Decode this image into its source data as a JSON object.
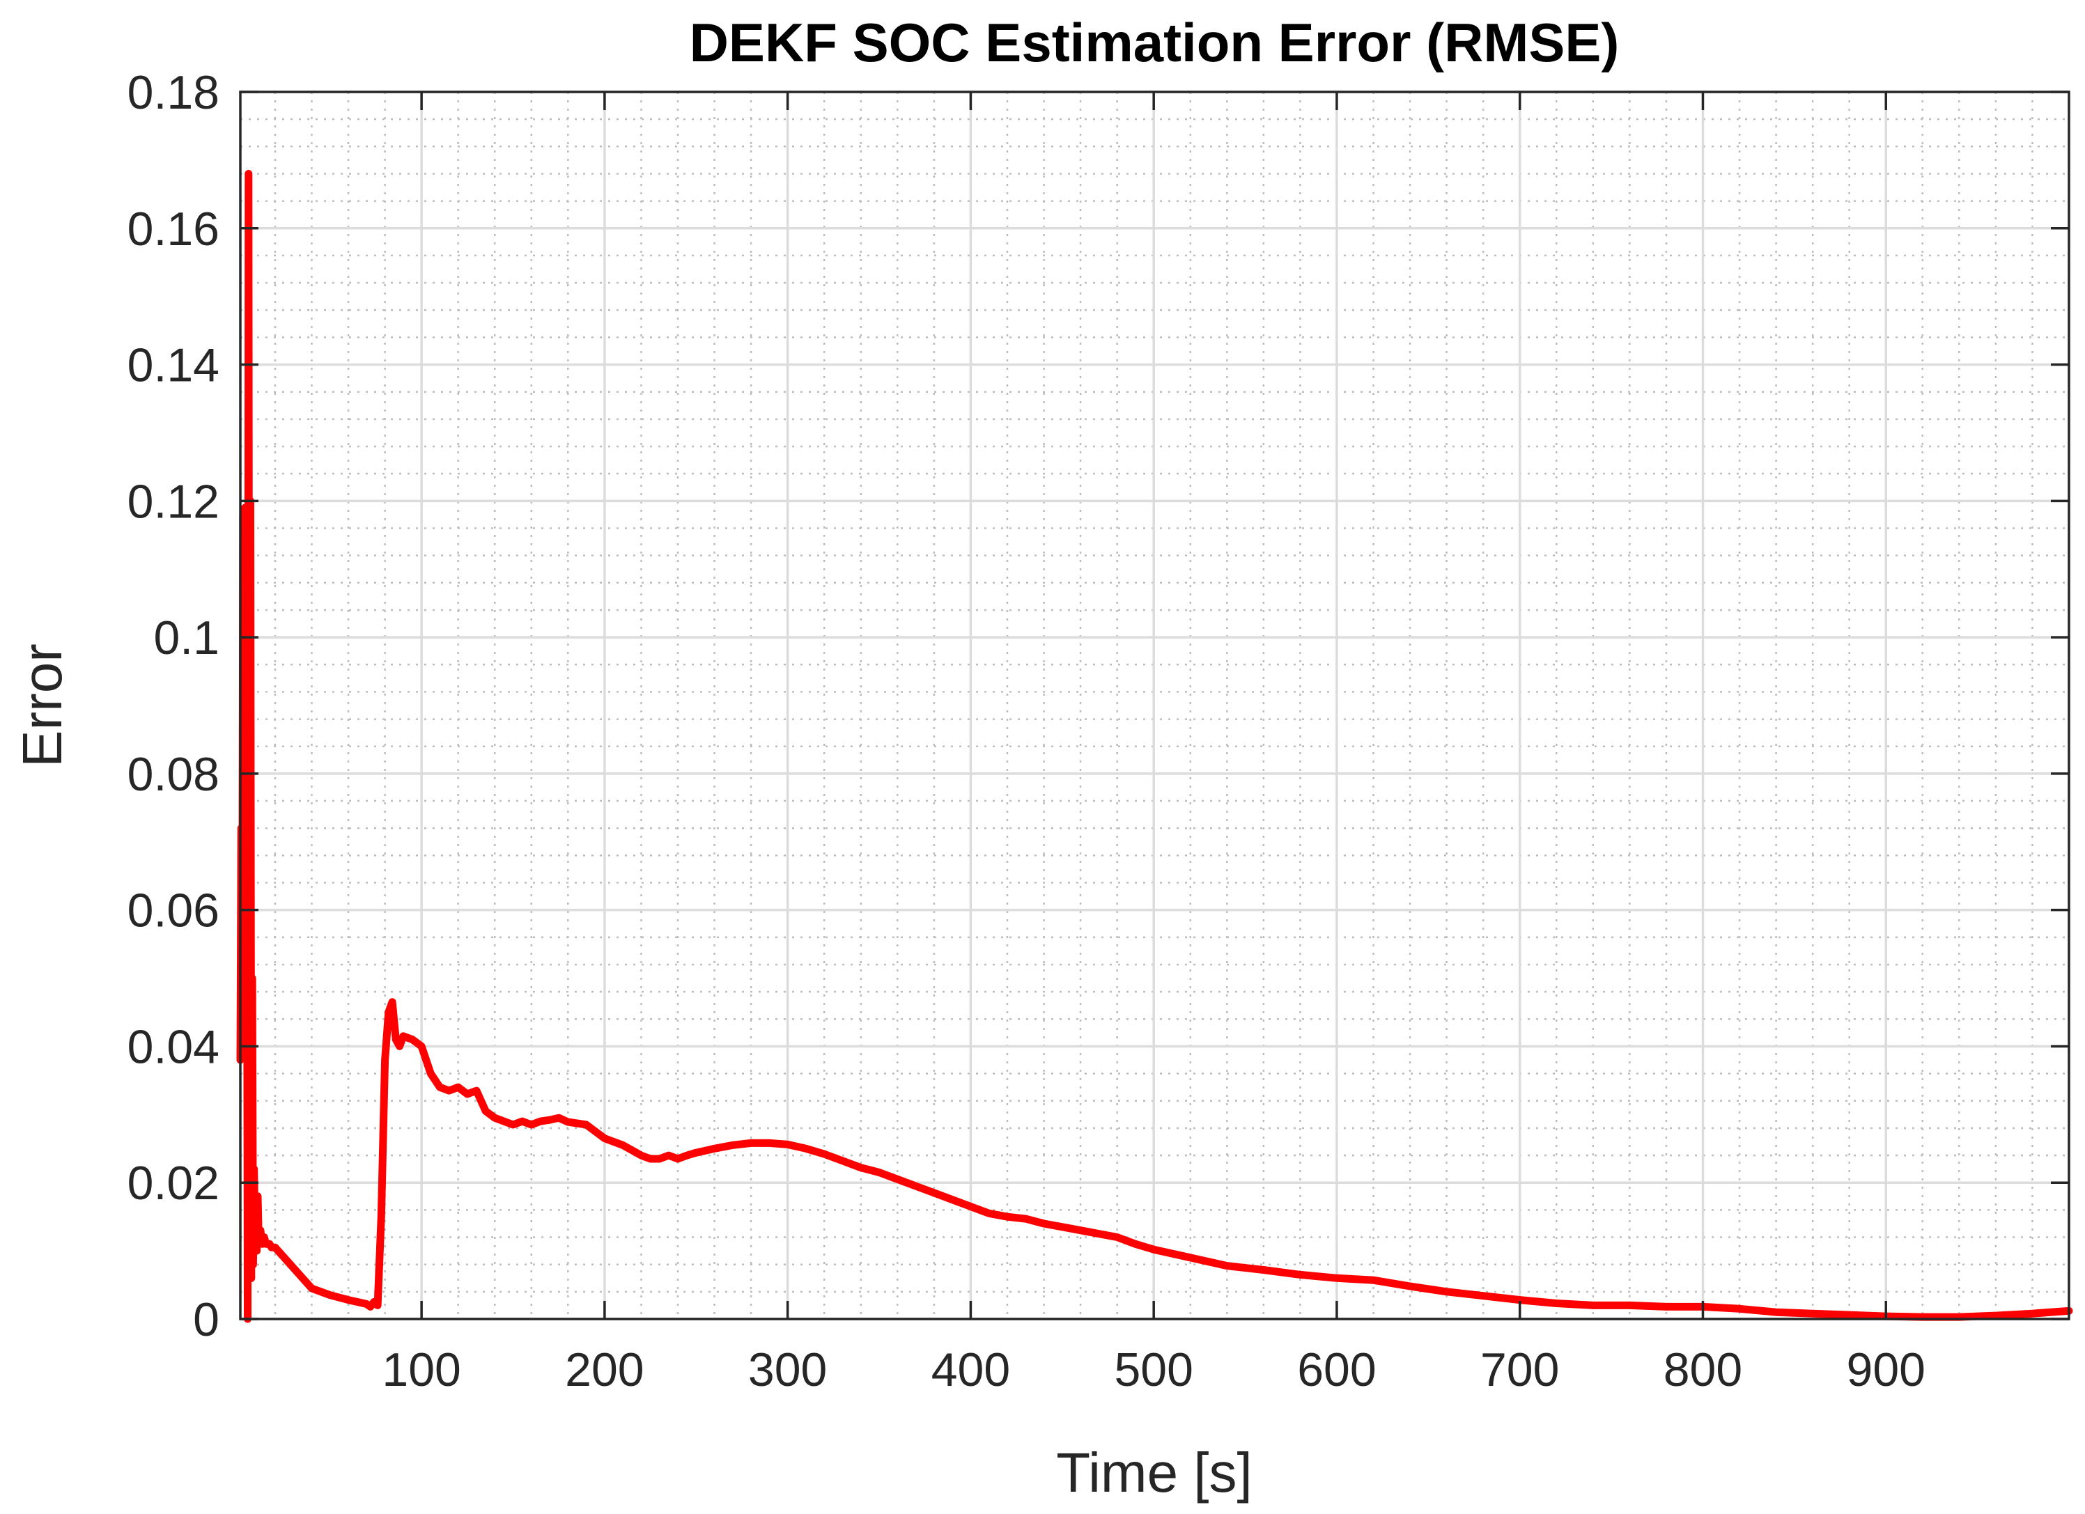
{
  "chart_data": {
    "type": "line",
    "title": "DEKF SOC Estimation Error (RMSE)",
    "xlabel": "Time [s]",
    "ylabel": "Error",
    "xlim": [
      1,
      1000
    ],
    "ylim": [
      0,
      0.18
    ],
    "x_ticks": [
      100,
      200,
      300,
      400,
      500,
      600,
      700,
      800,
      900
    ],
    "x_tick_labels": [
      "100",
      "200",
      "300",
      "400",
      "500",
      "600",
      "700",
      "800",
      "900"
    ],
    "y_ticks": [
      0,
      0.02,
      0.04,
      0.06,
      0.08,
      0.1,
      0.12,
      0.14,
      0.16,
      0.18
    ],
    "y_tick_labels": [
      "0",
      "0.02",
      "0.04",
      "0.06",
      "0.08",
      "0.1",
      "0.12",
      "0.14",
      "0.16",
      "0.18"
    ],
    "grid": true,
    "minor_grid": true,
    "series": [
      {
        "name": "RMSE",
        "color": "#ff0000",
        "x": [
          1,
          1.5,
          2,
          2.5,
          3,
          3.5,
          4,
          4.5,
          5,
          5.5,
          6,
          6.5,
          7,
          7.5,
          8,
          8.5,
          9,
          9.5,
          10,
          10.5,
          11,
          12,
          13,
          14,
          15,
          16,
          17,
          18,
          20,
          25,
          30,
          40,
          50,
          60,
          65,
          70,
          72,
          74,
          76,
          78,
          80,
          82,
          84,
          86,
          88,
          90,
          95,
          100,
          105,
          110,
          115,
          120,
          125,
          130,
          135,
          140,
          145,
          150,
          155,
          160,
          165,
          170,
          175,
          180,
          190,
          200,
          210,
          220,
          225,
          230,
          235,
          240,
          245,
          250,
          260,
          270,
          280,
          290,
          300,
          310,
          320,
          330,
          340,
          350,
          360,
          370,
          380,
          390,
          400,
          410,
          420,
          430,
          440,
          450,
          460,
          470,
          480,
          490,
          500,
          520,
          540,
          560,
          580,
          600,
          620,
          640,
          660,
          680,
          700,
          720,
          740,
          760,
          780,
          800,
          820,
          840,
          860,
          880,
          900,
          920,
          940,
          960,
          980,
          1000
        ],
        "y": [
          0.038,
          0.072,
          0.045,
          0.118,
          0.06,
          0.119,
          0.042,
          0.09,
          0.0,
          0.168,
          0.02,
          0.12,
          0.006,
          0.05,
          0.008,
          0.022,
          0.012,
          0.016,
          0.01,
          0.018,
          0.012,
          0.013,
          0.011,
          0.012,
          0.011,
          0.011,
          0.011,
          0.0105,
          0.0105,
          0.009,
          0.0075,
          0.0045,
          0.0035,
          0.0028,
          0.0025,
          0.0022,
          0.0018,
          0.0025,
          0.002,
          0.015,
          0.038,
          0.045,
          0.0465,
          0.041,
          0.04,
          0.0415,
          0.041,
          0.04,
          0.036,
          0.034,
          0.0335,
          0.034,
          0.033,
          0.0335,
          0.0305,
          0.0295,
          0.029,
          0.0285,
          0.029,
          0.0285,
          0.029,
          0.0292,
          0.0295,
          0.0289,
          0.0285,
          0.0265,
          0.0255,
          0.024,
          0.0235,
          0.0235,
          0.024,
          0.0235,
          0.024,
          0.0244,
          0.025,
          0.0255,
          0.0258,
          0.0258,
          0.0256,
          0.025,
          0.0242,
          0.0232,
          0.0222,
          0.0215,
          0.0205,
          0.0195,
          0.0185,
          0.0175,
          0.0165,
          0.0155,
          0.015,
          0.0147,
          0.014,
          0.0135,
          0.013,
          0.0125,
          0.012,
          0.011,
          0.0102,
          0.009,
          0.0078,
          0.0072,
          0.0065,
          0.006,
          0.0057,
          0.0048,
          0.004,
          0.0034,
          0.0028,
          0.0023,
          0.002,
          0.002,
          0.0018,
          0.0018,
          0.0015,
          0.001,
          0.0008,
          0.0006,
          0.0004,
          0.0003,
          0.0003,
          0.0005,
          0.0008,
          0.0012
        ]
      }
    ]
  }
}
